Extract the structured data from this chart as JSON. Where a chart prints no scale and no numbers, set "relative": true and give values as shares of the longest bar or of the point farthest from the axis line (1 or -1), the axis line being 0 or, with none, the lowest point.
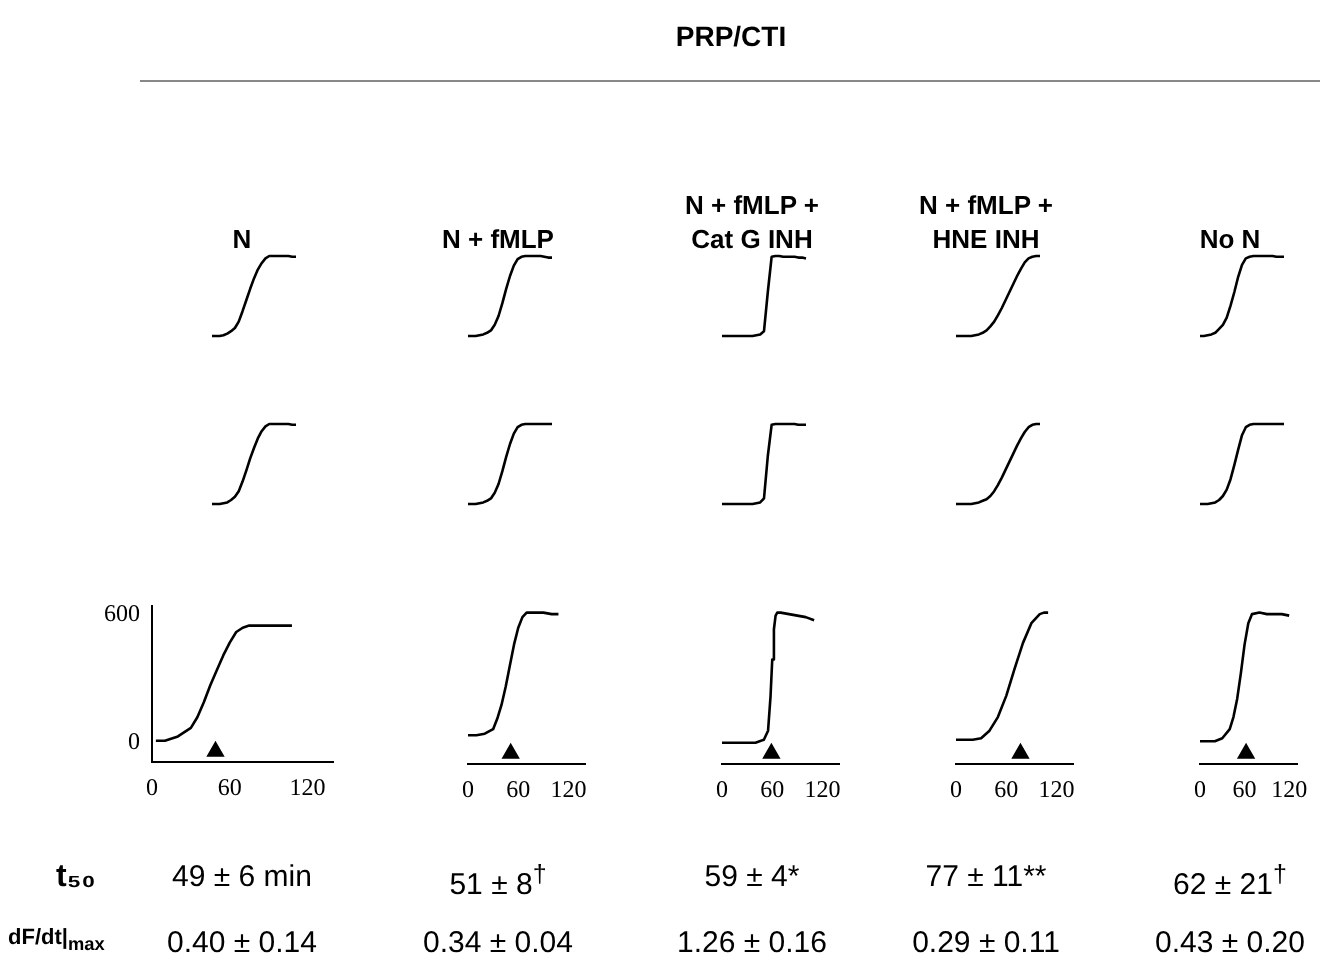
{
  "chart_data": [
    {
      "type": "other",
      "title": "PRP/CTI",
      "annotations": [
        "t₅₀",
        "dF/dt|$_{max}$"
      ]
    },
    {
      "type": "line",
      "title": "N",
      "relative": true,
      "tick_labels": false,
      "categories": [
        null,
        null,
        null,
        null,
        null,
        null,
        null,
        null,
        null,
        null,
        null,
        null,
        null,
        null,
        null,
        null,
        null,
        null,
        null,
        null,
        null,
        null,
        null
      ],
      "series": [
        {
          "color": "#000000",
          "marker": "none",
          "values": [
            0,
            0,
            0,
            0.01,
            0.03,
            0.06,
            0.1,
            0.18,
            0.31,
            0.45,
            0.59,
            0.72,
            0.83,
            0.91,
            0.97,
            1,
            1,
            1,
            1,
            1,
            1,
            0.99,
            0.99
          ]
        }
      ]
    },
    {
      "type": "line",
      "title": "N + fMLP",
      "relative": true,
      "tick_labels": false,
      "categories": [
        null,
        null,
        null,
        null,
        null,
        null,
        null,
        null,
        null,
        null,
        null,
        null,
        null,
        null,
        null,
        null,
        null,
        null,
        null,
        null,
        null,
        null,
        null
      ],
      "series": [
        {
          "color": "#000000",
          "marker": "none",
          "values": [
            0,
            0,
            0,
            0.01,
            0.02,
            0.04,
            0.07,
            0.14,
            0.25,
            0.41,
            0.59,
            0.75,
            0.88,
            0.96,
            0.99,
            1,
            1,
            1,
            1,
            1,
            0.99,
            0.98,
            0.98
          ]
        }
      ]
    },
    {
      "type": "line",
      "title": "N + fMLP +\nCat G INH",
      "relative": true,
      "tick_labels": false,
      "categories": [
        null,
        null,
        null,
        null,
        null,
        null,
        null,
        null,
        null,
        null,
        null,
        null,
        null,
        null,
        null,
        null,
        null,
        null,
        null,
        null,
        null,
        null,
        null
      ],
      "series": [
        {
          "color": "#000000",
          "marker": "none",
          "values": [
            0,
            0,
            0,
            0,
            0,
            0,
            0,
            0,
            0,
            0.01,
            0.02,
            0.06,
            0.55,
            0.99,
            1,
            1,
            0.99,
            0.99,
            0.99,
            0.99,
            0.98,
            0.98,
            0.97
          ]
        }
      ]
    },
    {
      "type": "line",
      "title": "N + fMLP +\nHNE INH",
      "relative": true,
      "tick_labels": false,
      "categories": [
        null,
        null,
        null,
        null,
        null,
        null,
        null,
        null,
        null,
        null,
        null,
        null,
        null,
        null,
        null,
        null,
        null,
        null,
        null,
        null,
        null,
        null,
        null
      ],
      "series": [
        {
          "color": "#000000",
          "marker": "none",
          "values": [
            0,
            0,
            0,
            0,
            0,
            0.01,
            0.02,
            0.04,
            0.07,
            0.12,
            0.18,
            0.26,
            0.35,
            0.45,
            0.55,
            0.65,
            0.75,
            0.84,
            0.92,
            0.97,
            0.99,
            1,
            1
          ]
        }
      ]
    },
    {
      "type": "line",
      "title": "No N",
      "relative": true,
      "tick_labels": false,
      "categories": [
        null,
        null,
        null,
        null,
        null,
        null,
        null,
        null,
        null,
        null,
        null,
        null,
        null,
        null,
        null,
        null,
        null,
        null,
        null,
        null,
        null,
        null,
        null
      ],
      "series": [
        {
          "color": "#000000",
          "marker": "none",
          "values": [
            0,
            0,
            0.01,
            0.02,
            0.04,
            0.09,
            0.14,
            0.23,
            0.38,
            0.55,
            0.74,
            0.89,
            0.97,
            0.99,
            1,
            1,
            1,
            1,
            1,
            1,
            0.99,
            0.99,
            0.99
          ]
        }
      ]
    },
    {
      "type": "line",
      "relative": true,
      "tick_labels": false,
      "categories": [
        null,
        null,
        null,
        null,
        null,
        null,
        null,
        null,
        null,
        null,
        null,
        null,
        null,
        null,
        null,
        null,
        null,
        null,
        null,
        null,
        null,
        null,
        null
      ],
      "series": [
        {
          "color": "#000000",
          "marker": "none",
          "values": [
            0,
            0,
            0,
            0.01,
            0.02,
            0.05,
            0.09,
            0.16,
            0.28,
            0.42,
            0.57,
            0.7,
            0.82,
            0.91,
            0.97,
            1,
            1,
            1,
            1,
            1,
            1,
            0.99,
            0.99
          ]
        }
      ]
    },
    {
      "type": "line",
      "relative": true,
      "tick_labels": false,
      "categories": [
        null,
        null,
        null,
        null,
        null,
        null,
        null,
        null,
        null,
        null,
        null,
        null,
        null,
        null,
        null,
        null,
        null,
        null,
        null,
        null,
        null,
        null,
        null
      ],
      "series": [
        {
          "color": "#000000",
          "marker": "none",
          "values": [
            0,
            0,
            0,
            0.01,
            0.02,
            0.04,
            0.07,
            0.14,
            0.25,
            0.41,
            0.59,
            0.75,
            0.88,
            0.96,
            0.99,
            1,
            1,
            1,
            1,
            1,
            1,
            1,
            1
          ]
        }
      ]
    },
    {
      "type": "line",
      "relative": true,
      "tick_labels": false,
      "categories": [
        null,
        null,
        null,
        null,
        null,
        null,
        null,
        null,
        null,
        null,
        null,
        null,
        null,
        null,
        null,
        null,
        null,
        null,
        null,
        null,
        null,
        null,
        null
      ],
      "series": [
        {
          "color": "#000000",
          "marker": "none",
          "values": [
            0,
            0,
            0,
            0,
            0,
            0,
            0,
            0,
            0,
            0.01,
            0.02,
            0.07,
            0.6,
            0.99,
            1,
            1,
            1,
            1,
            1,
            1,
            0.99,
            0.99,
            0.99
          ]
        }
      ]
    },
    {
      "type": "line",
      "relative": true,
      "tick_labels": false,
      "categories": [
        null,
        null,
        null,
        null,
        null,
        null,
        null,
        null,
        null,
        null,
        null,
        null,
        null,
        null,
        null,
        null,
        null,
        null,
        null,
        null,
        null,
        null,
        null
      ],
      "series": [
        {
          "color": "#000000",
          "marker": "none",
          "values": [
            0,
            0,
            0,
            0,
            0,
            0.01,
            0.02,
            0.04,
            0.06,
            0.1,
            0.16,
            0.24,
            0.33,
            0.43,
            0.53,
            0.63,
            0.73,
            0.82,
            0.9,
            0.96,
            0.99,
            1,
            1
          ]
        }
      ]
    },
    {
      "type": "line",
      "relative": true,
      "tick_labels": false,
      "categories": [
        null,
        null,
        null,
        null,
        null,
        null,
        null,
        null,
        null,
        null,
        null,
        null,
        null,
        null,
        null,
        null,
        null,
        null,
        null,
        null,
        null,
        null,
        null
      ],
      "series": [
        {
          "color": "#000000",
          "marker": "none",
          "values": [
            0,
            0,
            0,
            0.01,
            0.02,
            0.05,
            0.1,
            0.18,
            0.31,
            0.49,
            0.68,
            0.86,
            0.96,
            0.99,
            1,
            1,
            1,
            1,
            1,
            1,
            1,
            1,
            1
          ]
        }
      ]
    },
    {
      "type": "line",
      "xlim": [
        0,
        140
      ],
      "ylim": [
        -90,
        640
      ],
      "xticks": [
        0,
        60,
        120
      ],
      "yticks": [
        0,
        600
      ],
      "annotations": [
        "49 ± 6 min",
        "0.40 ± 0.14"
      ],
      "series": [
        {
          "color": "#000000",
          "marker": "none",
          "x": [
            3,
            10,
            20,
            30,
            35,
            40,
            45,
            50,
            55,
            60,
            65,
            70,
            75,
            80,
            90,
            100,
            108
          ],
          "values": [
            10,
            10,
            30,
            70,
            120,
            190,
            270,
            340,
            410,
            470,
            520,
            540,
            550,
            550,
            550,
            550,
            550
          ]
        },
        {
          "type": "scatter",
          "color": "#000000",
          "marker": "triangle",
          "x": [
            49
          ],
          "values": [
            -40
          ]
        }
      ]
    },
    {
      "type": "line",
      "relative": true,
      "xlim": [
        0,
        140
      ],
      "xticks": [
        0,
        60,
        120
      ],
      "tick_labels": "x",
      "annotations": [
        "51 ± 8$^{†}$",
        "0.34 ± 0.04"
      ],
      "series": [
        {
          "color": "#000000",
          "marker": "none",
          "x": [
            0,
            10,
            20,
            30,
            35,
            40,
            45,
            50,
            55,
            60,
            65,
            70,
            75,
            80,
            90,
            100,
            108
          ],
          "values": [
            0.19,
            0.19,
            0.2,
            0.23,
            0.3,
            0.39,
            0.51,
            0.65,
            0.79,
            0.9,
            0.97,
            1,
            1,
            1,
            1,
            0.99,
            0.99
          ]
        },
        {
          "type": "scatter",
          "color": "#000000",
          "marker": "triangle",
          "x": [
            51
          ],
          "values": [
            0.07
          ]
        }
      ]
    },
    {
      "type": "line",
      "relative": true,
      "xlim": [
        0,
        140
      ],
      "xticks": [
        0,
        60,
        120
      ],
      "tick_labels": "x",
      "annotations": [
        "59 ± 4*",
        "1.26 ± 0.16"
      ],
      "series": [
        {
          "color": "#000000",
          "marker": "none",
          "x": [
            0,
            10,
            20,
            30,
            40,
            50,
            55,
            58,
            60,
            62,
            64,
            66,
            70,
            80,
            90,
            100,
            110
          ],
          "values": [
            0.14,
            0.14,
            0.14,
            0.14,
            0.14,
            0.16,
            0.22,
            0.45,
            0.69,
            0.89,
            0.98,
            1,
            1,
            0.99,
            0.98,
            0.97,
            0.95
          ]
        },
        {
          "type": "scatter",
          "color": "#000000",
          "marker": "triangle",
          "x": [
            59
          ],
          "values": [
            0.07
          ]
        }
      ]
    },
    {
      "type": "line",
      "relative": true,
      "xlim": [
        0,
        140
      ],
      "xticks": [
        0,
        60,
        120
      ],
      "tick_labels": "x",
      "annotations": [
        "77 ± 11**",
        "0.29 ± 0.11"
      ],
      "series": [
        {
          "color": "#000000",
          "marker": "none",
          "x": [
            0,
            10,
            20,
            30,
            40,
            50,
            60,
            70,
            80,
            90,
            100,
            105,
            110
          ],
          "values": [
            0.16,
            0.16,
            0.16,
            0.17,
            0.22,
            0.31,
            0.45,
            0.63,
            0.8,
            0.93,
            0.99,
            1,
            1
          ]
        },
        {
          "type": "scatter",
          "color": "#000000",
          "marker": "triangle",
          "x": [
            77
          ],
          "values": [
            0.07
          ]
        }
      ]
    },
    {
      "type": "line",
      "relative": true,
      "xlim": [
        0,
        130
      ],
      "xticks": [
        0,
        60,
        120
      ],
      "tick_labels": "x",
      "annotations": [
        "62 ± 21$^{†}$",
        "0.43 ± 0.20"
      ],
      "series": [
        {
          "color": "#000000",
          "marker": "none",
          "x": [
            0,
            10,
            20,
            30,
            40,
            45,
            50,
            55,
            60,
            65,
            70,
            80,
            90,
            100,
            110,
            120
          ],
          "values": [
            0.15,
            0.15,
            0.15,
            0.17,
            0.23,
            0.31,
            0.43,
            0.6,
            0.79,
            0.93,
            0.99,
            1,
            0.99,
            0.99,
            0.99,
            0.98
          ]
        },
        {
          "type": "scatter",
          "color": "#000000",
          "marker": "triangle",
          "x": [
            62
          ],
          "values": [
            0.07
          ]
        }
      ]
    }
  ]
}
